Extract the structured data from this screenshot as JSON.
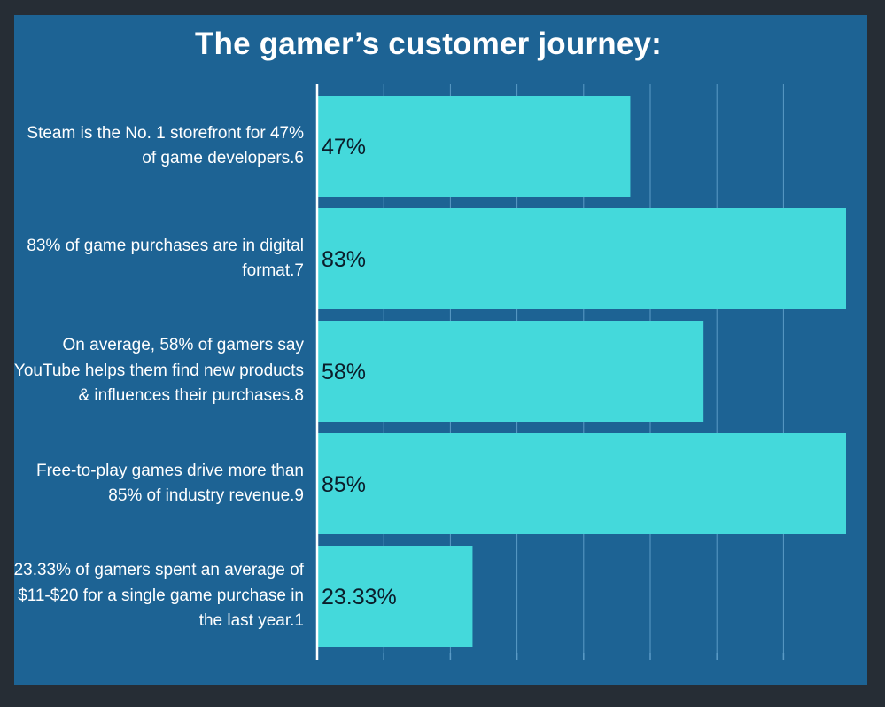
{
  "chart_data": {
    "type": "bar",
    "orientation": "horizontal",
    "title": "The gamer’s customer journey:",
    "categories": [
      "Steam is the No. 1 storefront for 47% of game developers.6",
      "83% of game purchases are in digital format.7",
      "On average, 58% of gamers say YouTube helps them find new products & influences their purchases.8",
      "Free-to-play games drive more than 85% of industry revenue.9",
      "23.33% of gamers spent an average of $11-$20 for a single game purchase in the last year.1"
    ],
    "values": [
      47,
      83,
      58,
      85,
      23.33
    ],
    "data_labels": [
      "47%",
      "83%",
      "58%",
      "85%",
      "23.33%"
    ],
    "xlim": [
      0,
      80
    ],
    "grid": true,
    "xlabel": "",
    "ylabel": ""
  },
  "colors": {
    "page_background": "#262d35",
    "panel_background": "#1d6394",
    "bar_fill": "#44d9db",
    "axis_line": "#ffffff",
    "grid_line": "#5b9bc6",
    "label_text": "#ffffff",
    "value_text": "#0b1d2a"
  }
}
